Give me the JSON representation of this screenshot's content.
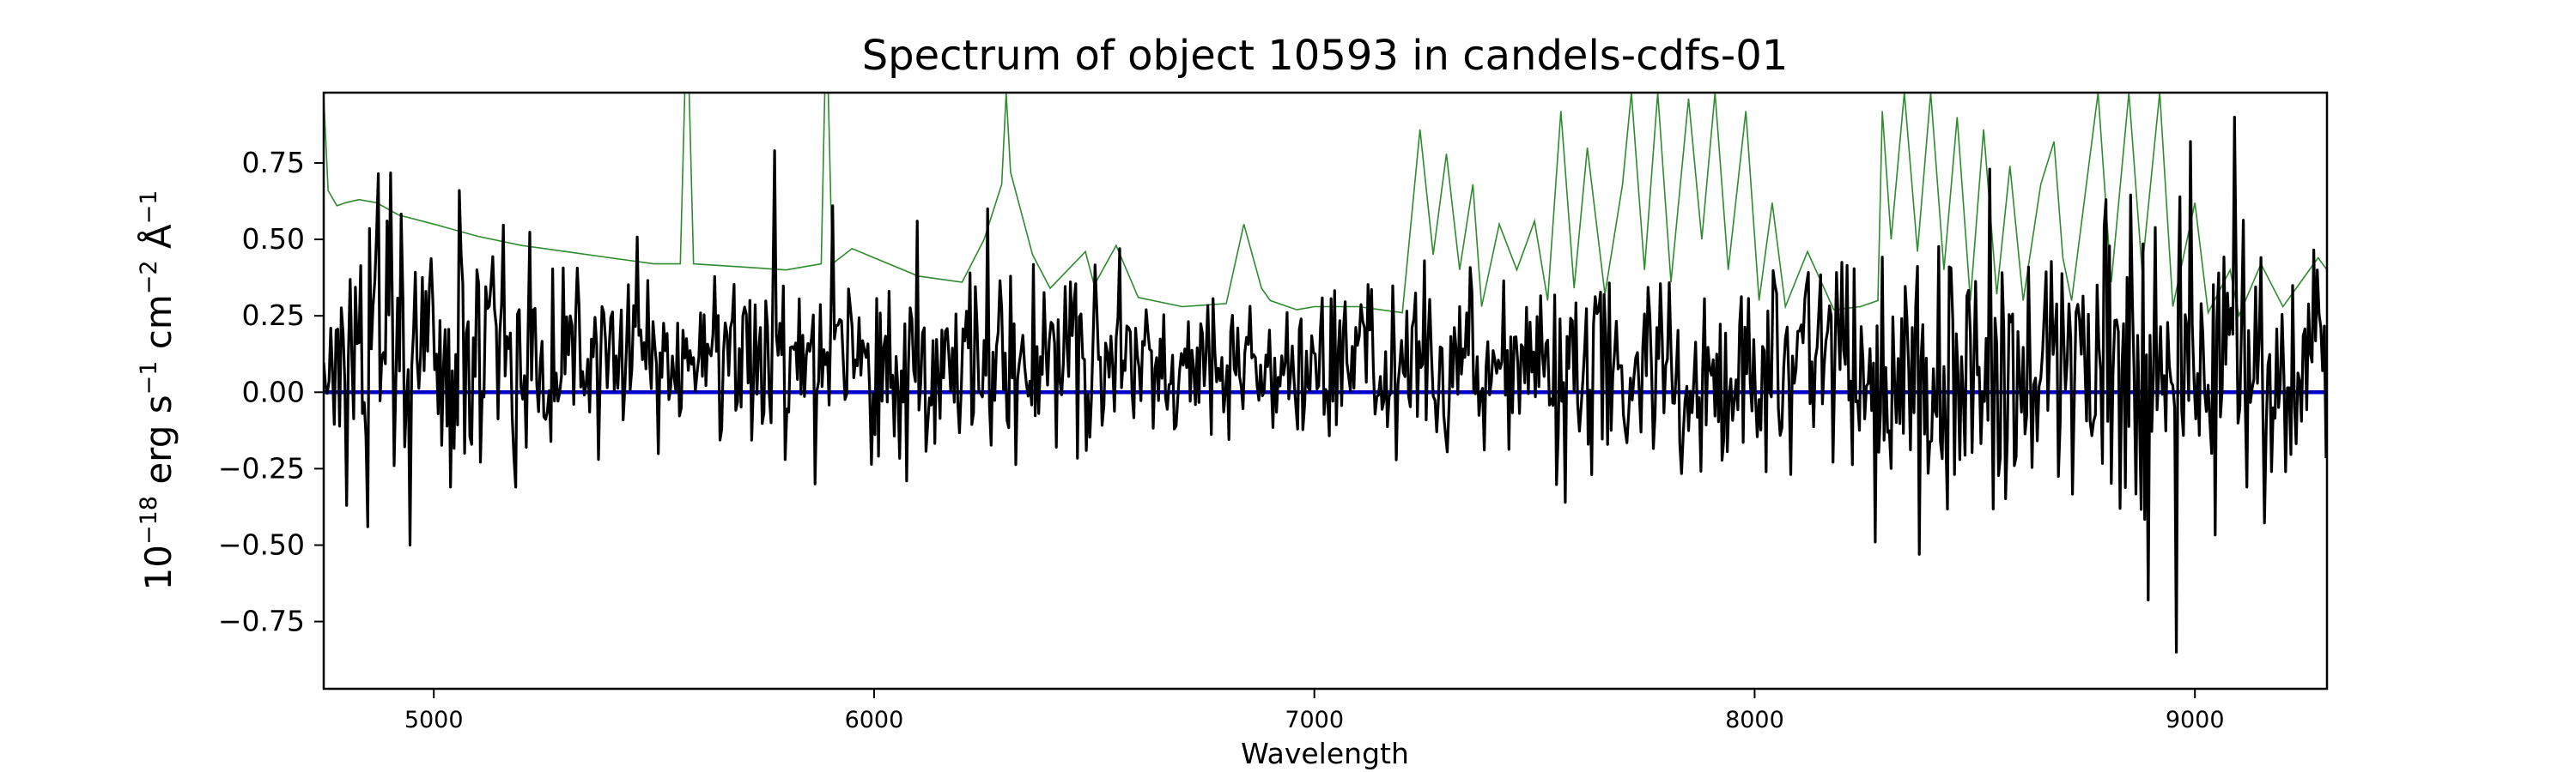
{
  "chart_data": {
    "type": "line",
    "title": "Spectrum of object 10593 in candels-cdfs-01",
    "xlabel": "Wavelength",
    "ylabel": {
      "base": "10",
      "exp": "−18",
      "erg": " erg s",
      "s_exp": "−1",
      "cm": " cm",
      "cm_exp": "−2",
      "ang": " Å",
      "ang_exp": "−1"
    },
    "xlim": [
      4750,
      9300
    ],
    "ylim": [
      -0.97,
      0.98
    ],
    "xticks": [
      {
        "value": 5000,
        "label": "5000"
      },
      {
        "value": 6000,
        "label": "6000"
      },
      {
        "value": 7000,
        "label": "7000"
      },
      {
        "value": 8000,
        "label": "8000"
      },
      {
        "value": 9000,
        "label": "9000"
      }
    ],
    "yticks": [
      {
        "value": 0.75,
        "label": "0.75"
      },
      {
        "value": 0.5,
        "label": "0.50"
      },
      {
        "value": 0.25,
        "label": "0.25"
      },
      {
        "value": 0.0,
        "label": "0.00"
      },
      {
        "value": -0.25,
        "label": "−0.25"
      },
      {
        "value": -0.5,
        "label": "−0.50"
      },
      {
        "value": -0.75,
        "label": "−0.75"
      }
    ],
    "grid": false,
    "legend": "none",
    "series": [
      {
        "role": "error spectrum",
        "color": "#2e8b2e",
        "points": [
          [
            4750,
            0.97
          ],
          [
            4760,
            0.66
          ],
          [
            4780,
            0.61
          ],
          [
            4800,
            0.62
          ],
          [
            4830,
            0.63
          ],
          [
            4870,
            0.62
          ],
          [
            4920,
            0.58
          ],
          [
            5000,
            0.55
          ],
          [
            5100,
            0.51
          ],
          [
            5200,
            0.48
          ],
          [
            5300,
            0.46
          ],
          [
            5400,
            0.44
          ],
          [
            5500,
            0.42
          ],
          [
            5560,
            0.42
          ],
          [
            5570,
            0.98
          ],
          [
            5580,
            0.98
          ],
          [
            5590,
            0.42
          ],
          [
            5700,
            0.41
          ],
          [
            5800,
            0.4
          ],
          [
            5880,
            0.42
          ],
          [
            5888,
            0.98
          ],
          [
            5896,
            0.98
          ],
          [
            5905,
            0.42
          ],
          [
            5950,
            0.47
          ],
          [
            6000,
            0.44
          ],
          [
            6100,
            0.38
          ],
          [
            6200,
            0.36
          ],
          [
            6250,
            0.5
          ],
          [
            6290,
            0.68
          ],
          [
            6300,
            0.98
          ],
          [
            6310,
            0.72
          ],
          [
            6360,
            0.45
          ],
          [
            6400,
            0.34
          ],
          [
            6480,
            0.46
          ],
          [
            6500,
            0.35
          ],
          [
            6550,
            0.48
          ],
          [
            6600,
            0.31
          ],
          [
            6700,
            0.28
          ],
          [
            6800,
            0.29
          ],
          [
            6840,
            0.55
          ],
          [
            6880,
            0.34
          ],
          [
            6900,
            0.3
          ],
          [
            6960,
            0.27
          ],
          [
            7000,
            0.28
          ],
          [
            7100,
            0.28
          ],
          [
            7200,
            0.26
          ],
          [
            7240,
            0.86
          ],
          [
            7270,
            0.45
          ],
          [
            7300,
            0.78
          ],
          [
            7330,
            0.4
          ],
          [
            7360,
            0.68
          ],
          [
            7380,
            0.28
          ],
          [
            7420,
            0.55
          ],
          [
            7460,
            0.4
          ],
          [
            7500,
            0.56
          ],
          [
            7530,
            0.3
          ],
          [
            7560,
            0.92
          ],
          [
            7590,
            0.34
          ],
          [
            7620,
            0.8
          ],
          [
            7660,
            0.32
          ],
          [
            7700,
            0.68
          ],
          [
            7720,
            0.98
          ],
          [
            7750,
            0.4
          ],
          [
            7780,
            0.98
          ],
          [
            7810,
            0.36
          ],
          [
            7850,
            0.96
          ],
          [
            7880,
            0.5
          ],
          [
            7910,
            0.98
          ],
          [
            7940,
            0.4
          ],
          [
            7980,
            0.92
          ],
          [
            8010,
            0.3
          ],
          [
            8040,
            0.62
          ],
          [
            8070,
            0.28
          ],
          [
            8120,
            0.46
          ],
          [
            8180,
            0.27
          ],
          [
            8240,
            0.28
          ],
          [
            8280,
            0.3
          ],
          [
            8290,
            0.92
          ],
          [
            8310,
            0.5
          ],
          [
            8340,
            0.98
          ],
          [
            8370,
            0.46
          ],
          [
            8400,
            0.98
          ],
          [
            8430,
            0.4
          ],
          [
            8460,
            0.9
          ],
          [
            8490,
            0.3
          ],
          [
            8520,
            0.86
          ],
          [
            8550,
            0.32
          ],
          [
            8580,
            0.74
          ],
          [
            8610,
            0.3
          ],
          [
            8650,
            0.68
          ],
          [
            8680,
            0.82
          ],
          [
            8700,
            0.44
          ],
          [
            8720,
            0.3
          ],
          [
            8780,
            0.98
          ],
          [
            8810,
            0.36
          ],
          [
            8850,
            0.98
          ],
          [
            8880,
            0.4
          ],
          [
            8920,
            0.98
          ],
          [
            8950,
            0.28
          ],
          [
            9000,
            0.62
          ],
          [
            9030,
            0.26
          ],
          [
            9080,
            0.4
          ],
          [
            9100,
            0.25
          ],
          [
            9150,
            0.42
          ],
          [
            9200,
            0.28
          ],
          [
            9240,
            0.36
          ],
          [
            9280,
            0.44
          ],
          [
            9300,
            0.4
          ]
        ]
      },
      {
        "role": "zero line",
        "color": "#0000cc",
        "points": [
          [
            4750,
            0.0
          ],
          [
            9300,
            0.0
          ]
        ]
      },
      {
        "role": "flux spectrum",
        "color": "#000000",
        "noise_seed": 10593,
        "step": 4,
        "envelope": [
          [
            4750,
            0.14,
            0.18
          ],
          [
            4900,
            0.22,
            0.22
          ],
          [
            5200,
            0.15,
            0.17
          ],
          [
            5600,
            0.12,
            0.15
          ],
          [
            6000,
            0.1,
            0.14
          ],
          [
            6400,
            0.08,
            0.12
          ],
          [
            6800,
            0.07,
            0.12
          ],
          [
            7200,
            0.08,
            0.13
          ],
          [
            7600,
            0.08,
            0.16
          ],
          [
            8000,
            0.07,
            0.16
          ],
          [
            8300,
            0.07,
            0.2
          ],
          [
            8600,
            0.08,
            0.2
          ],
          [
            8900,
            0.1,
            0.25
          ],
          [
            9300,
            0.08,
            0.18
          ]
        ],
        "spikes": [
          [
            4802,
            -0.37
          ],
          [
            4850,
            -0.44
          ],
          [
            4945,
            -0.5
          ],
          [
            4910,
            -0.24
          ],
          [
            5040,
            -0.31
          ],
          [
            5185,
            -0.31
          ],
          [
            5060,
            0.66
          ],
          [
            5800,
            -0.22
          ],
          [
            5775,
            0.79
          ],
          [
            5865,
            -0.3
          ],
          [
            5905,
            0.61
          ],
          [
            6075,
            -0.29
          ],
          [
            6100,
            0.56
          ],
          [
            6260,
            0.6
          ],
          [
            6415,
            -0.18
          ],
          [
            6560,
            0.47
          ],
          [
            7250,
            0.43
          ],
          [
            7570,
            -0.36
          ],
          [
            8275,
            -0.49
          ],
          [
            8374,
            -0.53
          ],
          [
            8535,
            0.73
          ],
          [
            8800,
            0.63
          ],
          [
            8830,
            -0.38
          ],
          [
            8895,
            -0.68
          ],
          [
            8957,
            -0.85
          ],
          [
            8990,
            0.82
          ],
          [
            9040,
            -0.2
          ],
          [
            9090,
            0.9
          ],
          [
            9120,
            -0.31
          ],
          [
            9280,
            0.4
          ]
        ]
      }
    ]
  }
}
